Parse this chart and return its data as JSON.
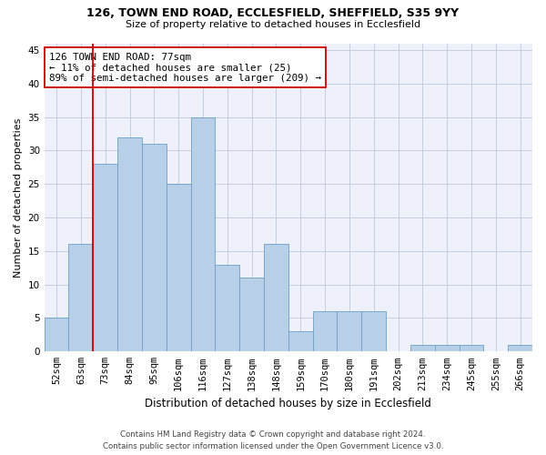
{
  "title1": "126, TOWN END ROAD, ECCLESFIELD, SHEFFIELD, S35 9YY",
  "title2": "Size of property relative to detached houses in Ecclesfield",
  "xlabel": "Distribution of detached houses by size in Ecclesfield",
  "ylabel": "Number of detached properties",
  "bar_labels": [
    "52sqm",
    "63sqm",
    "73sqm",
    "84sqm",
    "95sqm",
    "106sqm",
    "116sqm",
    "127sqm",
    "138sqm",
    "148sqm",
    "159sqm",
    "170sqm",
    "180sqm",
    "191sqm",
    "202sqm",
    "213sqm",
    "234sqm",
    "245sqm",
    "255sqm",
    "266sqm"
  ],
  "bar_values": [
    5,
    16,
    28,
    32,
    31,
    25,
    35,
    13,
    11,
    16,
    3,
    6,
    6,
    6,
    0,
    1,
    1,
    1,
    0,
    1
  ],
  "bar_color": "#b8cfe8",
  "bar_edgecolor": "#6a9fc8",
  "vline_color": "#cc0000",
  "annotation_text": "126 TOWN END ROAD: 77sqm\n← 11% of detached houses are smaller (25)\n89% of semi-detached houses are larger (209) →",
  "ylim": [
    0,
    46
  ],
  "yticks": [
    0,
    5,
    10,
    15,
    20,
    25,
    30,
    35,
    40,
    45
  ],
  "footer": "Contains HM Land Registry data © Crown copyright and database right 2024.\nContains public sector information licensed under the Open Government Licence v3.0.",
  "background_color": "#eef1f9",
  "grid_color": "#c5cde0"
}
